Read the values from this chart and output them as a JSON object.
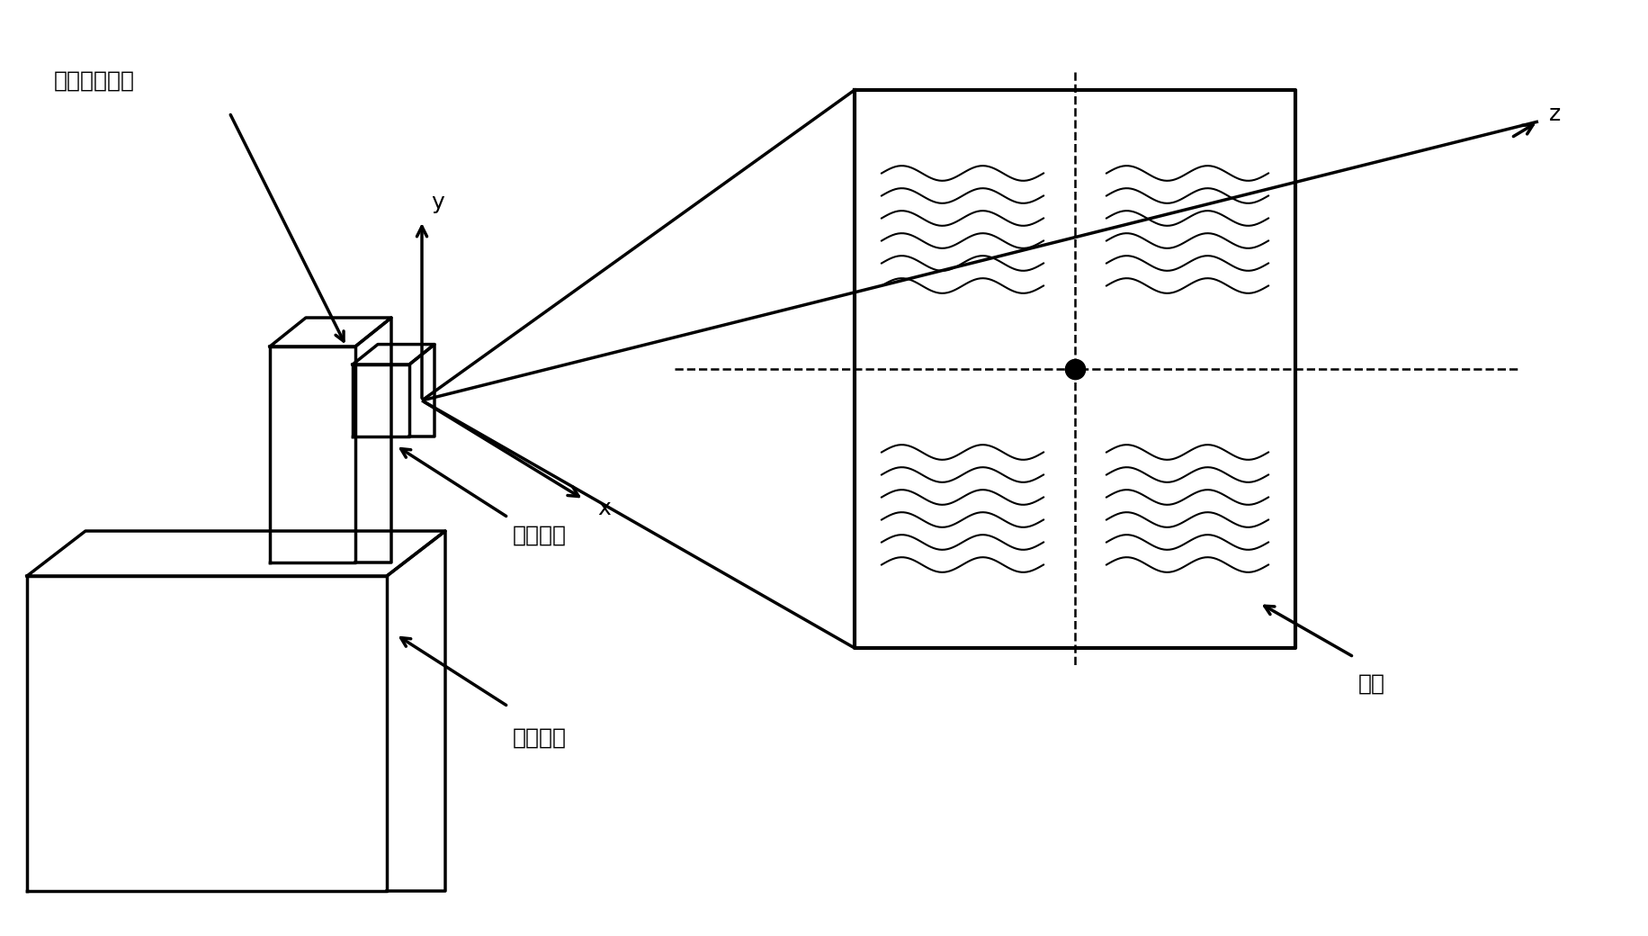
{
  "bg_color": "#ffffff",
  "line_color": "#000000",
  "label_actuator": "致动器连镜头",
  "label_camera": "相机模组",
  "label_platform": "调试平台",
  "label_target": "目标",
  "axis_x": "x",
  "axis_y": "y",
  "axis_z": "z",
  "font_size_labels": 18,
  "font_size_axes": 18,
  "figsize": [
    18.32,
    10.4
  ],
  "dpi": 100
}
